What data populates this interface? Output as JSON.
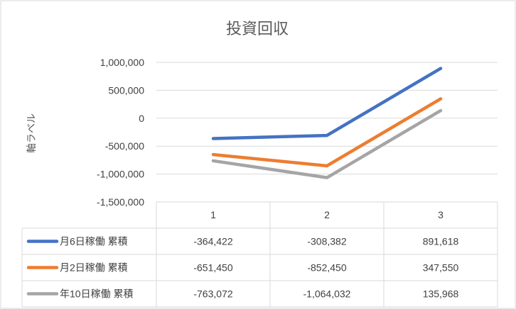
{
  "chart_data": {
    "type": "line",
    "title": "投資回収",
    "ylabel": "軸ラベル",
    "xlabel": "",
    "categories": [
      "1",
      "2",
      "3"
    ],
    "ylim": [
      -1500000,
      1000000
    ],
    "y_ticks": [
      {
        "value": 1000000,
        "label": "1,000,000",
        "color": "#404040"
      },
      {
        "value": 500000,
        "label": "500,000",
        "color": "#404040"
      },
      {
        "value": 0,
        "label": "0",
        "color": "#404040"
      },
      {
        "value": -500000,
        "label": "-500,000",
        "color": "#ff0000"
      },
      {
        "value": -1000000,
        "label": "-1,000,000",
        "color": "#ff0000"
      },
      {
        "value": -1500000,
        "label": "-1,500,000",
        "color": "#ff0000"
      }
    ],
    "grid": true,
    "legend": "data-table",
    "series": [
      {
        "name": "月6日稼働 累積",
        "color": "#4472c4",
        "values": [
          -364422,
          -308382,
          891618
        ],
        "labels": [
          "-364,422",
          "-308,382",
          "891,618"
        ]
      },
      {
        "name": "月2日稼働 累積",
        "color": "#ed7d31",
        "values": [
          -651450,
          -852450,
          347550
        ],
        "labels": [
          "-651,450",
          "-852,450",
          "347,550"
        ]
      },
      {
        "name": "年10日稼働 累積",
        "color": "#a5a5a5",
        "values": [
          -763072,
          -1064032,
          135968
        ],
        "labels": [
          "-763,072",
          "-1,064,032",
          "135,968"
        ]
      }
    ]
  }
}
